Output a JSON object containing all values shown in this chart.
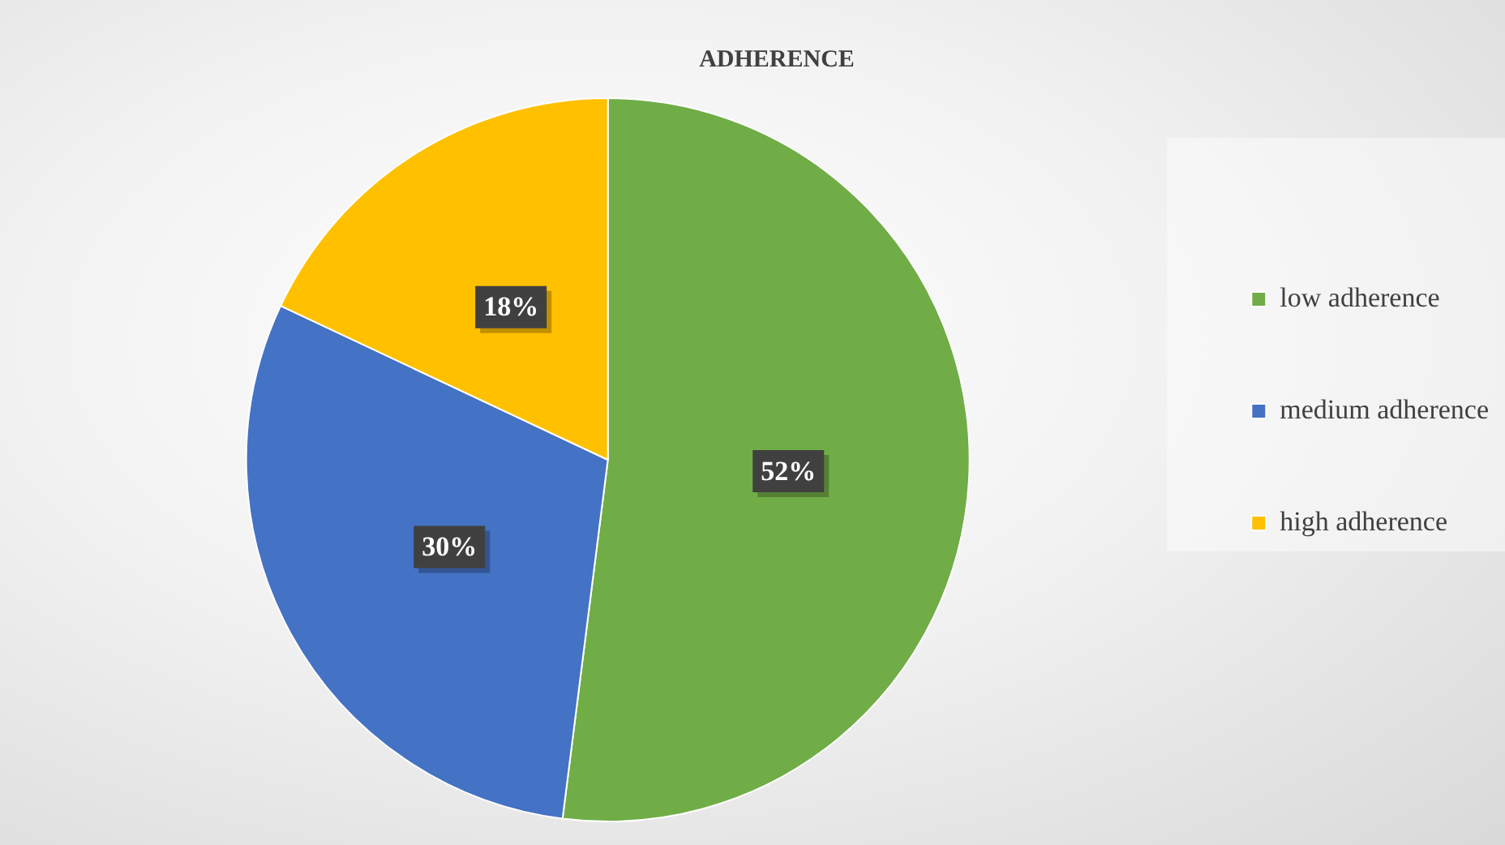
{
  "chart_data": {
    "type": "pie",
    "title": "ADHERENCE",
    "categories": [
      "low adherence",
      "medium adherence",
      "high adherence"
    ],
    "values": [
      52,
      30,
      18
    ],
    "colors": [
      "#70ad47",
      "#4472c4",
      "#ffc000"
    ],
    "value_labels": [
      "52%",
      "30%",
      "18%"
    ],
    "legend": "right"
  }
}
